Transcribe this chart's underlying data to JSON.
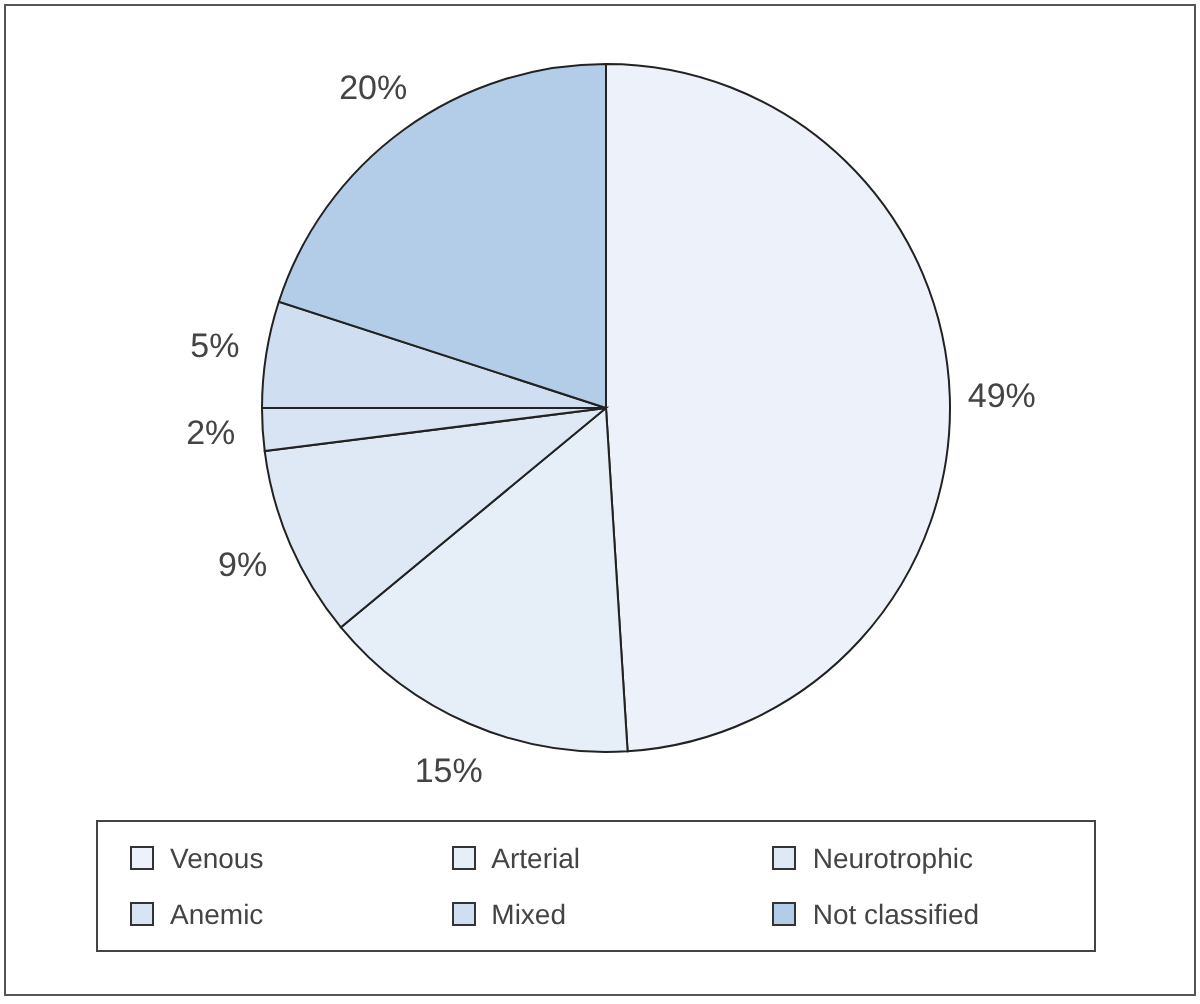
{
  "chart_data": {
    "type": "pie",
    "categories": [
      "Venous",
      "Arterial",
      "Neurotrophic",
      "Anemic",
      "Mixed",
      "Not classified"
    ],
    "values": [
      49,
      15,
      9,
      2,
      5,
      20
    ],
    "value_labels": [
      "49%",
      "15%",
      "9%",
      "2%",
      "5%",
      "20%"
    ],
    "colors": [
      "#edf2fa",
      "#e6eef8",
      "#dfe8f5",
      "#d8e4f3",
      "#cfdef0",
      "#b3cde9"
    ],
    "legend": "bottom"
  }
}
